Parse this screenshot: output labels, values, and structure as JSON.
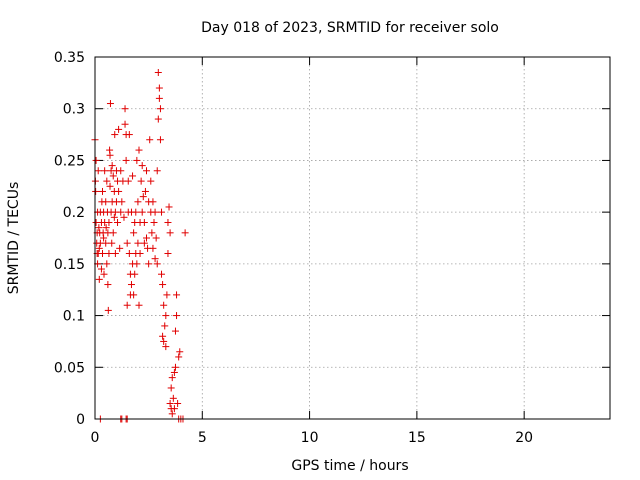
{
  "chart_data": {
    "type": "scatter",
    "title": "Day 018 of 2023, SRMTID for receiver solo",
    "xlabel": "GPS time / hours",
    "ylabel": "SRMTID / TECUs",
    "xlim": [
      0,
      24
    ],
    "ylim": [
      0,
      0.35
    ],
    "xticks": [
      0,
      5,
      10,
      15,
      20
    ],
    "yticks": [
      0,
      0.05,
      0.1,
      0.15,
      0.2,
      0.25,
      0.3,
      0.35
    ],
    "xtick_labels": [
      "0",
      "5",
      "10",
      "15",
      "20"
    ],
    "ytick_labels": [
      "0",
      "0.05",
      "0.1",
      "0.15",
      "0.2",
      "0.25",
      "0.3",
      "0.35"
    ],
    "grid": true,
    "marker": "+",
    "color": "#e00000",
    "points": [
      [
        0.0,
        0.27
      ],
      [
        0.02,
        0.23
      ],
      [
        0.03,
        0.22
      ],
      [
        0.05,
        0.19
      ],
      [
        0.05,
        0.25
      ],
      [
        0.08,
        0.17
      ],
      [
        0.1,
        0.18
      ],
      [
        0.1,
        0.16
      ],
      [
        0.12,
        0.2
      ],
      [
        0.12,
        0.15
      ],
      [
        0.15,
        0.24
      ],
      [
        0.15,
        0.16
      ],
      [
        0.18,
        0.185
      ],
      [
        0.2,
        0.165
      ],
      [
        0.2,
        0.135
      ],
      [
        0.22,
        0.18
      ],
      [
        0.25,
        0.2
      ],
      [
        0.25,
        0.17
      ],
      [
        0.3,
        0.19
      ],
      [
        0.3,
        0.145
      ],
      [
        0.32,
        0.21
      ],
      [
        0.35,
        0.16
      ],
      [
        0.35,
        0.22
      ],
      [
        0.38,
        0.18
      ],
      [
        0.4,
        0.2
      ],
      [
        0.4,
        0.175
      ],
      [
        0.42,
        0.14
      ],
      [
        0.45,
        0.19
      ],
      [
        0.45,
        0.24
      ],
      [
        0.5,
        0.17
      ],
      [
        0.5,
        0.21
      ],
      [
        0.52,
        0.185
      ],
      [
        0.55,
        0.23
      ],
      [
        0.55,
        0.15
      ],
      [
        0.58,
        0.2
      ],
      [
        0.6,
        0.18
      ],
      [
        0.6,
        0.13
      ],
      [
        0.62,
        0.105
      ],
      [
        0.65,
        0.16
      ],
      [
        0.65,
        0.19
      ],
      [
        0.68,
        0.26
      ],
      [
        0.7,
        0.255
      ],
      [
        0.7,
        0.225
      ],
      [
        0.72,
        0.305
      ],
      [
        0.75,
        0.2
      ],
      [
        0.75,
        0.24
      ],
      [
        0.78,
        0.17
      ],
      [
        0.8,
        0.21
      ],
      [
        0.8,
        0.245
      ],
      [
        0.85,
        0.18
      ],
      [
        0.85,
        0.235
      ],
      [
        0.9,
        0.22
      ],
      [
        0.9,
        0.195
      ],
      [
        0.92,
        0.275
      ],
      [
        0.95,
        0.2
      ],
      [
        0.95,
        0.16
      ],
      [
        1.0,
        0.24
      ],
      [
        1.0,
        0.21
      ],
      [
        1.05,
        0.23
      ],
      [
        1.05,
        0.19
      ],
      [
        1.1,
        0.28
      ],
      [
        1.1,
        0.22
      ],
      [
        1.15,
        0.165
      ],
      [
        1.2,
        0.24
      ],
      [
        1.2,
        0.2
      ],
      [
        1.25,
        0.21
      ],
      [
        1.3,
        0.23
      ],
      [
        1.35,
        0.195
      ],
      [
        1.4,
        0.3
      ],
      [
        1.4,
        0.285
      ],
      [
        1.45,
        0.275
      ],
      [
        1.45,
        0.25
      ],
      [
        1.5,
        0.17
      ],
      [
        1.5,
        0.11
      ],
      [
        1.55,
        0.23
      ],
      [
        1.55,
        0.2
      ],
      [
        1.6,
        0.275
      ],
      [
        1.6,
        0.16
      ],
      [
        1.65,
        0.14
      ],
      [
        1.65,
        0.12
      ],
      [
        1.7,
        0.2
      ],
      [
        1.7,
        0.13
      ],
      [
        1.75,
        0.15
      ],
      [
        1.75,
        0.235
      ],
      [
        1.8,
        0.18
      ],
      [
        1.8,
        0.12
      ],
      [
        1.85,
        0.19
      ],
      [
        1.85,
        0.14
      ],
      [
        1.9,
        0.2
      ],
      [
        1.9,
        0.16
      ],
      [
        1.95,
        0.25
      ],
      [
        1.95,
        0.15
      ],
      [
        2.0,
        0.17
      ],
      [
        2.0,
        0.21
      ],
      [
        2.05,
        0.26
      ],
      [
        2.05,
        0.11
      ],
      [
        2.1,
        0.19
      ],
      [
        2.1,
        0.16
      ],
      [
        2.15,
        0.23
      ],
      [
        2.2,
        0.245
      ],
      [
        2.2,
        0.2
      ],
      [
        2.25,
        0.215
      ],
      [
        2.3,
        0.19
      ],
      [
        2.3,
        0.17
      ],
      [
        2.35,
        0.22
      ],
      [
        2.4,
        0.175
      ],
      [
        2.4,
        0.24
      ],
      [
        2.45,
        0.165
      ],
      [
        2.5,
        0.21
      ],
      [
        2.5,
        0.15
      ],
      [
        2.55,
        0.27
      ],
      [
        2.6,
        0.2
      ],
      [
        2.6,
        0.23
      ],
      [
        2.65,
        0.18
      ],
      [
        2.7,
        0.21
      ],
      [
        2.7,
        0.165
      ],
      [
        2.75,
        0.19
      ],
      [
        2.8,
        0.2
      ],
      [
        2.8,
        0.155
      ],
      [
        2.85,
        0.175
      ],
      [
        2.9,
        0.24
      ],
      [
        2.9,
        0.15
      ],
      [
        2.95,
        0.29
      ],
      [
        2.95,
        0.335
      ],
      [
        3.0,
        0.32
      ],
      [
        3.0,
        0.31
      ],
      [
        3.05,
        0.27
      ],
      [
        3.05,
        0.3
      ],
      [
        3.1,
        0.2
      ],
      [
        3.1,
        0.14
      ],
      [
        3.15,
        0.13
      ],
      [
        3.15,
        0.08
      ],
      [
        3.2,
        0.11
      ],
      [
        3.2,
        0.075
      ],
      [
        3.25,
        0.09
      ],
      [
        3.3,
        0.07
      ],
      [
        3.3,
        0.1
      ],
      [
        3.35,
        0.12
      ],
      [
        3.4,
        0.16
      ],
      [
        3.4,
        0.19
      ],
      [
        3.45,
        0.205
      ],
      [
        3.5,
        0.18
      ],
      [
        3.5,
        0.015
      ],
      [
        3.55,
        0.01
      ],
      [
        3.55,
        0.03
      ],
      [
        3.6,
        0.04
      ],
      [
        3.6,
        0.005
      ],
      [
        3.65,
        0.02
      ],
      [
        3.7,
        0.045
      ],
      [
        3.7,
        0.01
      ],
      [
        3.75,
        0.05
      ],
      [
        3.75,
        0.085
      ],
      [
        3.8,
        0.1
      ],
      [
        3.8,
        0.12
      ],
      [
        3.85,
        0.015
      ],
      [
        3.9,
        0.06
      ],
      [
        3.95,
        0.065
      ],
      [
        4.0,
        0.0
      ],
      [
        4.1,
        0.0
      ],
      [
        4.2,
        0.18
      ],
      [
        0.25,
        0.0
      ],
      [
        1.2,
        0.0
      ],
      [
        1.25,
        0.0
      ],
      [
        1.45,
        0.0
      ],
      [
        1.5,
        0.0
      ],
      [
        3.9,
        0.0
      ]
    ]
  }
}
